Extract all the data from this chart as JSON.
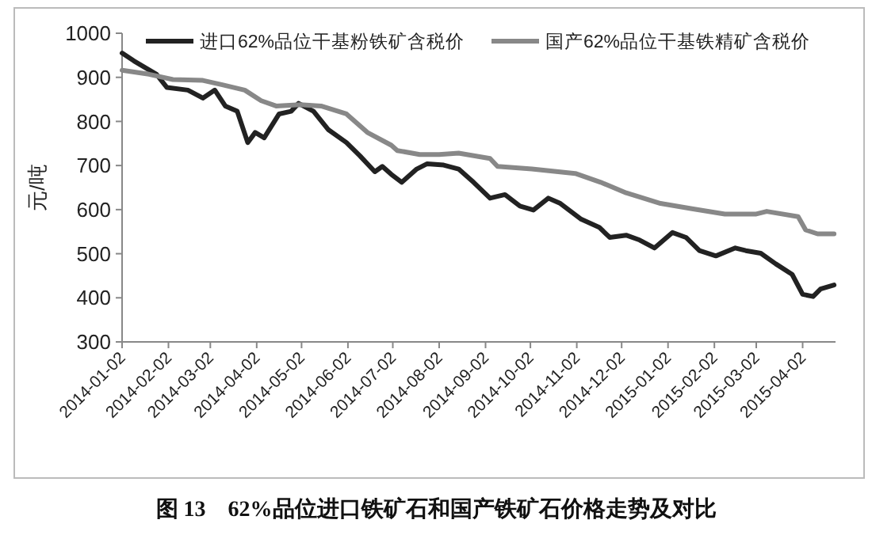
{
  "chart_data": {
    "type": "line",
    "title": "图 13    62%品位进口铁矿石和国产铁矿石价格走势及对比",
    "ylabel": "元/吨",
    "xlim": [
      "2014-01-02",
      "2015-04-24"
    ],
    "xticks": [
      "2014-01-02",
      "2014-02-02",
      "2014-03-02",
      "2014-04-02",
      "2014-05-02",
      "2014-06-02",
      "2014-07-02",
      "2014-08-02",
      "2014-09-02",
      "2014-10-02",
      "2014-11-02",
      "2014-12-02",
      "2015-01-02",
      "2015-02-02",
      "2015-03-02",
      "2015-04-02"
    ],
    "ylim": [
      300,
      1000
    ],
    "yticks": [
      300,
      400,
      500,
      600,
      700,
      800,
      900,
      1000
    ],
    "grid": false,
    "legend": "top",
    "marker": "none",
    "series": [
      {
        "name": "进口62%品位干基粉铁矿含税价",
        "color": "#222222",
        "line_style": "solid",
        "x": [
          "2014-01-02",
          "2014-01-10",
          "2014-01-25",
          "2014-02-01",
          "2014-02-15",
          "2014-02-25",
          "2014-03-05",
          "2014-03-12",
          "2014-03-20",
          "2014-03-27",
          "2014-04-01",
          "2014-04-07",
          "2014-04-17",
          "2014-04-25",
          "2014-04-30",
          "2014-05-10",
          "2014-05-20",
          "2014-06-01",
          "2014-06-10",
          "2014-06-20",
          "2014-06-25",
          "2014-07-01",
          "2014-07-08",
          "2014-07-18",
          "2014-07-25",
          "2014-08-05",
          "2014-08-15",
          "2014-08-25",
          "2014-09-05",
          "2014-09-15",
          "2014-09-25",
          "2014-10-04",
          "2014-10-14",
          "2014-10-22",
          "2014-11-05",
          "2014-11-17",
          "2014-11-24",
          "2014-12-05",
          "2014-12-14",
          "2014-12-24",
          "2015-01-05",
          "2015-01-14",
          "2015-01-23",
          "2015-02-03",
          "2015-02-16",
          "2015-02-23",
          "2015-03-05",
          "2015-03-15",
          "2015-03-26",
          "2015-04-02",
          "2015-04-09",
          "2015-04-14",
          "2015-04-23"
        ],
        "values": [
          955,
          937,
          907,
          877,
          871,
          853,
          871,
          835,
          823,
          752,
          775,
          763,
          817,
          823,
          841,
          823,
          781,
          752,
          722,
          686,
          698,
          680,
          662,
          692,
          704,
          701,
          692,
          662,
          626,
          634,
          608,
          599,
          626,
          614,
          578,
          560,
          537,
          542,
          531,
          513,
          548,
          537,
          507,
          495,
          513,
          507,
          501,
          477,
          453,
          408,
          403,
          420,
          429
        ]
      },
      {
        "name": "国产62%品位干基铁精矿含税价",
        "color": "#888888",
        "line_style": "solid",
        "x": [
          "2014-01-02",
          "2014-01-20",
          "2014-02-05",
          "2014-02-25",
          "2014-03-10",
          "2014-03-25",
          "2014-04-05",
          "2014-04-15",
          "2014-05-01",
          "2014-05-15",
          "2014-06-01",
          "2014-06-15",
          "2014-07-01",
          "2014-07-05",
          "2014-07-20",
          "2014-08-02",
          "2014-08-15",
          "2014-09-05",
          "2014-09-10",
          "2014-10-03",
          "2014-11-01",
          "2014-11-18",
          "2014-12-05",
          "2014-12-28",
          "2015-01-18",
          "2015-02-09",
          "2015-03-02",
          "2015-03-09",
          "2015-03-30",
          "2015-04-04",
          "2015-04-12",
          "2015-04-23"
        ],
        "values": [
          916,
          907,
          895,
          893,
          883,
          871,
          847,
          835,
          838,
          835,
          817,
          775,
          746,
          734,
          725,
          725,
          728,
          716,
          698,
          692,
          682,
          662,
          638,
          614,
          602,
          590,
          590,
          596,
          584,
          554,
          545,
          545
        ]
      }
    ]
  }
}
